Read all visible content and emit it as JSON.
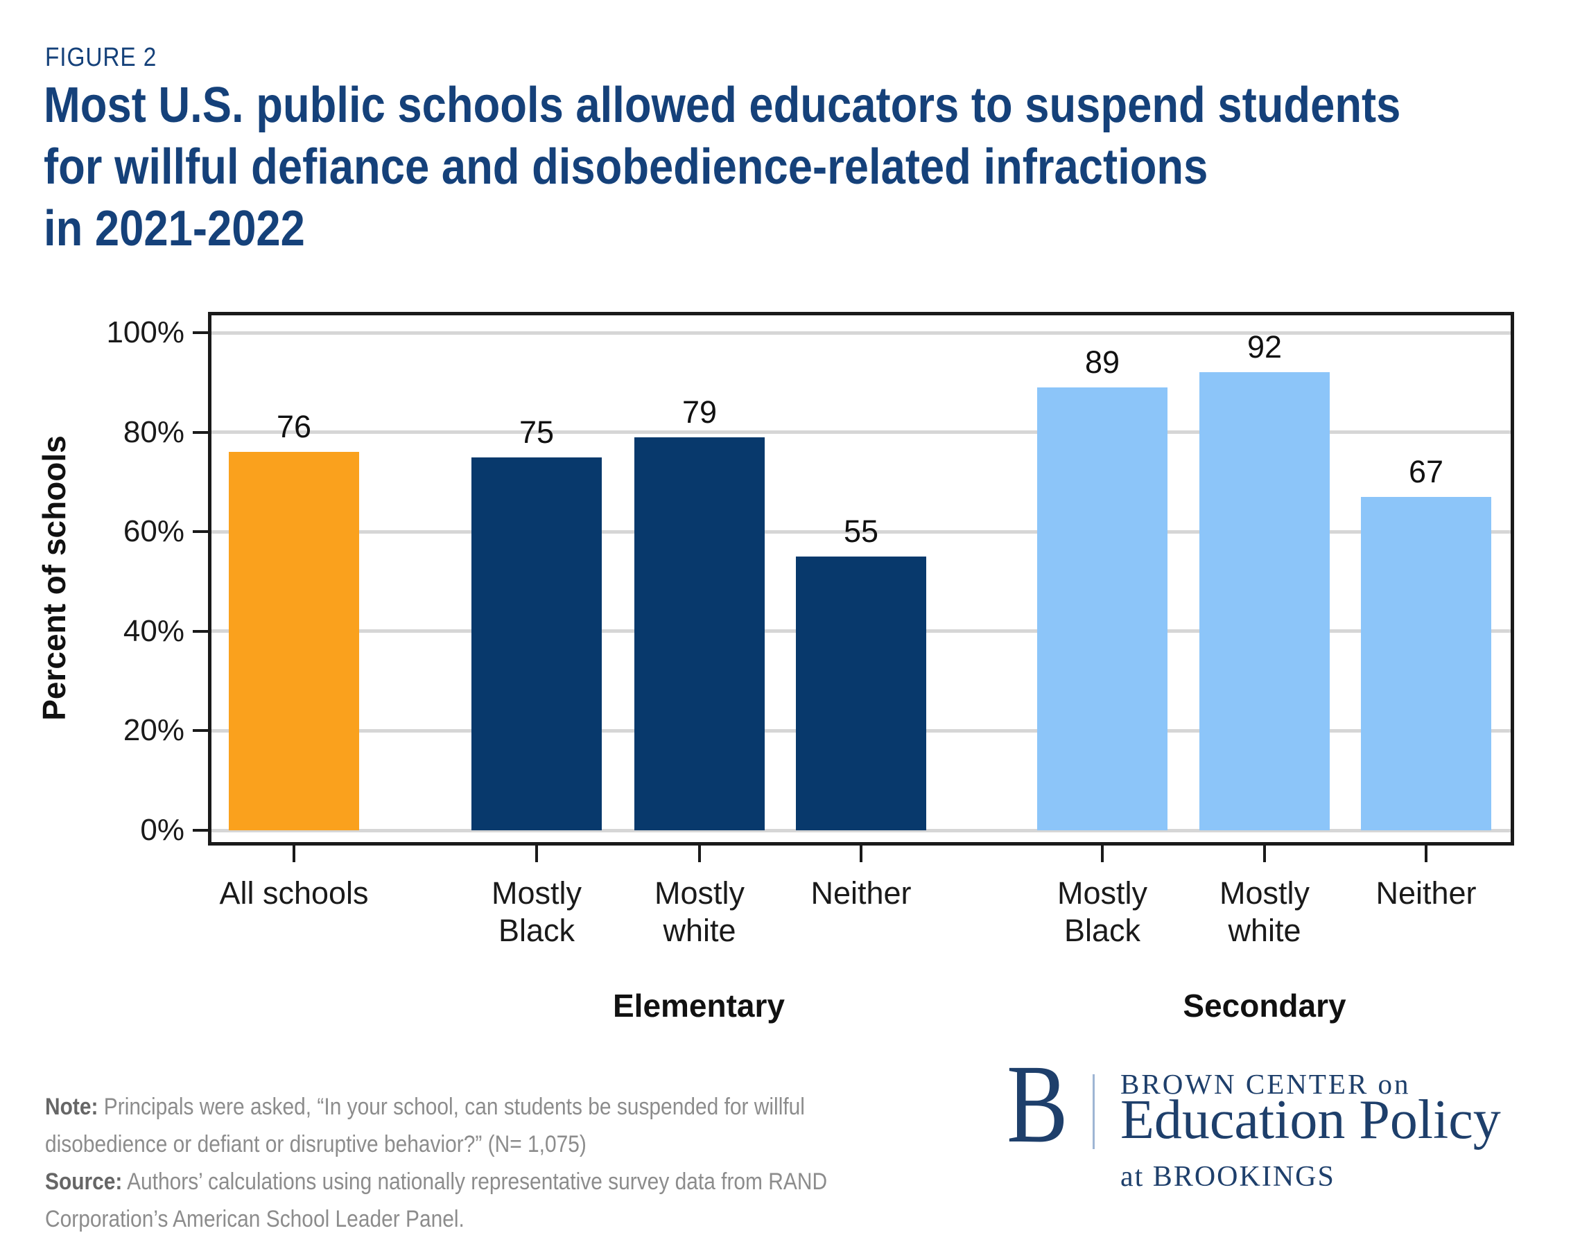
{
  "figure_label": "FIGURE 2",
  "title": {
    "lines": [
      "Most U.S. public schools allowed educators to suspend students",
      "for willful defiance and disobedience-related infractions",
      "in 2021-2022"
    ]
  },
  "chart_data": {
    "type": "bar",
    "title": "Most U.S. public schools allowed educators to suspend students for willful defiance and disobedience-related infractions in 2021-2022",
    "ylabel": "Percent of schools",
    "xlabel": "",
    "ylim": [
      0,
      100
    ],
    "y_tick_labels": [
      "0%",
      "20%",
      "40%",
      "60%",
      "80%",
      "100%"
    ],
    "grid": "horizontal",
    "legend": "none",
    "categories": [
      "All schools",
      "Mostly Black (Elementary)",
      "Mostly white (Elementary)",
      "Neither (Elementary)",
      "Mostly Black (Secondary)",
      "Mostly white (Secondary)",
      "Neither (Secondary)"
    ],
    "values": [
      76,
      75,
      79,
      55,
      89,
      92,
      67
    ],
    "group_labels": [
      "Elementary",
      "Secondary"
    ],
    "bars": [
      {
        "category": "All schools",
        "tick_label": "All schools",
        "group": null,
        "value": 76,
        "color_key": "bar_orange"
      },
      {
        "category": "Mostly Black",
        "tick_label": "Mostly\nBlack",
        "group": "Elementary",
        "value": 75,
        "color_key": "bar_navy"
      },
      {
        "category": "Mostly white",
        "tick_label": "Mostly\nwhite",
        "group": "Elementary",
        "value": 79,
        "color_key": "bar_navy"
      },
      {
        "category": "Neither",
        "tick_label": "Neither",
        "group": "Elementary",
        "value": 55,
        "color_key": "bar_navy"
      },
      {
        "category": "Mostly Black",
        "tick_label": "Mostly\nBlack",
        "group": "Secondary",
        "value": 89,
        "color_key": "bar_lightblue"
      },
      {
        "category": "Mostly white",
        "tick_label": "Mostly\nwhite",
        "group": "Secondary",
        "value": 92,
        "color_key": "bar_lightblue"
      },
      {
        "category": "Neither",
        "tick_label": "Neither",
        "group": "Secondary",
        "value": 67,
        "color_key": "bar_lightblue"
      }
    ]
  },
  "note": {
    "label": "Note:",
    "lines": [
      "Principals were asked, “In your school, can students be suspended for willful",
      "disobedience or defiant or disruptive behavior?” (N= 1,075)"
    ]
  },
  "source": {
    "label": "Source:",
    "lines": [
      "Authors’ calculations using nationally representative survey data from RAND",
      "Corporation’s American School Leader Panel."
    ]
  },
  "logo": {
    "b": "B",
    "top_line": "BROWN CENTER on",
    "name": "Education Policy",
    "bottom_line": "at BROOKINGS"
  },
  "colors": {
    "navy_title": "#15417A",
    "bar_orange": "#FAA11D",
    "bar_navy": "#08396C",
    "bar_lightblue": "#8CC5F9",
    "axis_black": "#1A1A1A",
    "gridline_gray": "#D6D6D6",
    "note_gray": "#8C8C8C",
    "note_label_gray": "#666666",
    "logo_navy": "#1E3F6B",
    "logo_divider": "#9FB6D4"
  }
}
